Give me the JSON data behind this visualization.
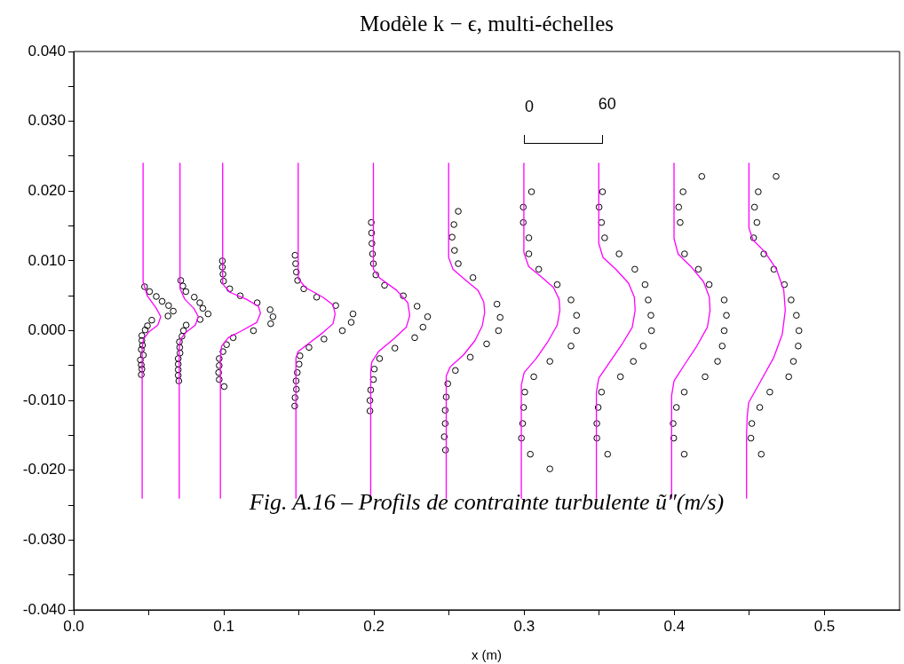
{
  "chart_data": {
    "type": "line",
    "title": "Modèle k − ϵ, multi-échelles",
    "xlabel": "x (m)",
    "xlim": [
      0,
      0.55
    ],
    "ylim": [
      -0.04,
      0.04
    ],
    "xticks": [
      {
        "value": 0,
        "label": "0.0"
      },
      {
        "value": 0.05,
        "label": null
      },
      {
        "value": 0.1,
        "label": "0.1"
      },
      {
        "value": 0.15,
        "label": null
      },
      {
        "value": 0.2,
        "label": "0.2"
      },
      {
        "value": 0.25,
        "label": null
      },
      {
        "value": 0.3,
        "label": "0.3"
      },
      {
        "value": 0.35,
        "label": null
      },
      {
        "value": 0.4,
        "label": "0.4"
      },
      {
        "value": 0.45,
        "label": null
      },
      {
        "value": 0.5,
        "label": "0.5"
      }
    ],
    "yticks": [
      {
        "value": -0.04,
        "label": "-0.040"
      },
      {
        "value": -0.035,
        "label": null
      },
      {
        "value": -0.03,
        "label": "-0.030"
      },
      {
        "value": -0.025,
        "label": null
      },
      {
        "value": -0.02,
        "label": "-0.020"
      },
      {
        "value": -0.015,
        "label": null
      },
      {
        "value": -0.01,
        "label": "-0.010"
      },
      {
        "value": -0.005,
        "label": null
      },
      {
        "value": 0,
        "label": "0.000"
      },
      {
        "value": 0.005,
        "label": null
      },
      {
        "value": 0.01,
        "label": "0.010"
      },
      {
        "value": 0.015,
        "label": null
      },
      {
        "value": 0.02,
        "label": "0.020"
      },
      {
        "value": 0.025,
        "label": null
      },
      {
        "value": 0.03,
        "label": "0.030"
      },
      {
        "value": 0.035,
        "label": null
      },
      {
        "value": 0.04,
        "label": "0.040"
      }
    ],
    "grid": false,
    "annotations": [
      "0",
      "60",
      "Fig. A.16 – Profils de contrainte turbulente ũ″(m/s)"
    ],
    "series": [
      {
        "type": "line",
        "color": "#ff00ff",
        "marker": "none",
        "line_style": "solid",
        "x": [
          0.0462,
          0.0462,
          0.049,
          0.055,
          0.058,
          0.056,
          0.05,
          0.0465,
          0.0456,
          0.0456
        ],
        "values": [
          0.024,
          0.007,
          0.005,
          0.0032,
          0.002,
          0.0008,
          -0.0002,
          -0.0012,
          -0.0025,
          -0.024
        ]
      },
      {
        "type": "line",
        "color": "#ff00ff",
        "marker": "none",
        "line_style": "solid",
        "x": [
          0.0708,
          0.0708,
          0.074,
          0.08,
          0.083,
          0.081,
          0.075,
          0.0712,
          0.0703,
          0.0703
        ],
        "values": [
          0.024,
          0.006,
          0.0045,
          0.0032,
          0.002,
          0.0008,
          -0.0002,
          -0.0012,
          -0.0025,
          -0.024
        ]
      },
      {
        "type": "line",
        "color": "#ff00ff",
        "marker": "none",
        "line_style": "solid",
        "x": [
          0.0992,
          0.0992,
          0.104,
          0.115,
          0.123,
          0.1244,
          0.122,
          0.112,
          0.103,
          0.0985,
          0.0977,
          0.0977
        ],
        "values": [
          0.024,
          0.0067,
          0.0055,
          0.0045,
          0.0035,
          0.0025,
          0.0012,
          0,
          -0.001,
          -0.0022,
          -0.004,
          -0.024
        ]
      },
      {
        "type": "line",
        "color": "#ff00ff",
        "marker": "none",
        "line_style": "solid",
        "x": [
          0.1495,
          0.1495,
          0.1542,
          0.1659,
          0.1727,
          0.1741,
          0.1727,
          0.1659,
          0.1566,
          0.1495,
          0.148,
          0.148
        ],
        "values": [
          0.024,
          0.0075,
          0.0062,
          0.0048,
          0.0037,
          0.0024,
          0.001,
          -0.0003,
          -0.0018,
          -0.003,
          -0.0039,
          -0.024
        ]
      },
      {
        "type": "line",
        "color": "#ff00ff",
        "marker": "none",
        "line_style": "solid",
        "x": [
          0.1996,
          0.1996,
          0.204,
          0.215,
          0.2225,
          0.2238,
          0.2215,
          0.213,
          0.203,
          0.1985,
          0.1978,
          0.1978
        ],
        "values": [
          0.024,
          0.0088,
          0.0075,
          0.0058,
          0.004,
          0.0022,
          0.0005,
          -0.0012,
          -0.003,
          -0.0045,
          -0.006,
          -0.024
        ]
      },
      {
        "type": "line",
        "color": "#ff00ff",
        "marker": "none",
        "line_style": "solid",
        "x": [
          0.2497,
          0.2497,
          0.2526,
          0.2595,
          0.2692,
          0.2731,
          0.2737,
          0.2721,
          0.2673,
          0.2595,
          0.2507,
          0.2481,
          0.2481
        ],
        "values": [
          0.024,
          0.0105,
          0.0088,
          0.0075,
          0.0058,
          0.0041,
          0.0026,
          0.0007,
          -0.0014,
          -0.0035,
          -0.0052,
          -0.0065,
          -0.024
        ]
      },
      {
        "type": "line",
        "color": "#ff00ff",
        "marker": "none",
        "line_style": "solid",
        "x": [
          0.2998,
          0.2998,
          0.303,
          0.311,
          0.3195,
          0.3233,
          0.3238,
          0.322,
          0.316,
          0.308,
          0.3,
          0.2981,
          0.2981
        ],
        "values": [
          0.024,
          0.0112,
          0.0092,
          0.0078,
          0.0062,
          0.0045,
          0.0029,
          0.0008,
          -0.0015,
          -0.004,
          -0.006,
          -0.0078,
          -0.024
        ]
      },
      {
        "type": "line",
        "color": "#ff00ff",
        "marker": "none",
        "line_style": "solid",
        "x": [
          0.3497,
          0.3497,
          0.3525,
          0.361,
          0.3695,
          0.3734,
          0.3739,
          0.372,
          0.365,
          0.357,
          0.3497,
          0.3481,
          0.3481
        ],
        "values": [
          0.024,
          0.0125,
          0.0105,
          0.0088,
          0.0068,
          0.0048,
          0.0029,
          0.0005,
          -0.002,
          -0.0045,
          -0.0068,
          -0.0088,
          -0.024
        ]
      },
      {
        "type": "line",
        "color": "#ff00ff",
        "marker": "none",
        "line_style": "solid",
        "x": [
          0.3998,
          0.3998,
          0.4025,
          0.411,
          0.4195,
          0.4233,
          0.4238,
          0.422,
          0.415,
          0.407,
          0.3998,
          0.3982,
          0.3982
        ],
        "values": [
          0.024,
          0.0132,
          0.011,
          0.0092,
          0.007,
          0.0048,
          0.0029,
          0.0005,
          -0.0022,
          -0.0048,
          -0.0072,
          -0.0093,
          -0.024
        ]
      },
      {
        "type": "line",
        "color": "#ff00ff",
        "marker": "none",
        "line_style": "solid",
        "x": [
          0.4497,
          0.4497,
          0.4524,
          0.4602,
          0.468,
          0.4729,
          0.4739,
          0.4719,
          0.4661,
          0.4563,
          0.4495,
          0.4485,
          0.4481,
          0.4481
        ],
        "values": [
          0.024,
          0.0147,
          0.013,
          0.0113,
          0.0088,
          0.0058,
          0.0029,
          -0.0005,
          -0.0039,
          -0.0077,
          -0.0103,
          -0.0124,
          -0.015,
          -0.024
        ]
      },
      {
        "type": "scatter",
        "color": "#000000",
        "marker": "circle",
        "x": [
          0.0472,
          0.0505,
          0.055,
          0.0589,
          0.0632,
          0.0663,
          0.0628,
          0.052,
          0.0491,
          0.0476,
          0.0454,
          0.0454,
          0.0458,
          0.045,
          0.0464,
          0.0444,
          0.045,
          0.0454,
          0.045
        ],
        "values": [
          0.0063,
          0.0056,
          0.0049,
          0.0042,
          0.0036,
          0.0028,
          0.0021,
          0.0015,
          0.0007,
          0.0001,
          -0.0007,
          -0.0014,
          -0.0021,
          -0.0027,
          -0.0035,
          -0.0042,
          -0.0049,
          -0.0055,
          -0.0063
        ]
      },
      {
        "type": "scatter",
        "color": "#000000",
        "marker": "circle",
        "x": [
          0.0713,
          0.0727,
          0.0747,
          0.0803,
          0.084,
          0.086,
          0.0895,
          0.0842,
          0.0749,
          0.0731,
          0.0721,
          0.0704,
          0.0706,
          0.0708,
          0.0696,
          0.0696,
          0.0696,
          0.0696,
          0.07
        ],
        "values": [
          0.0072,
          0.0064,
          0.0056,
          0.0048,
          0.004,
          0.0032,
          0.0024,
          0.0016,
          0.0008,
          0,
          -0.0008,
          -0.0016,
          -0.0024,
          -0.0032,
          -0.004,
          -0.0048,
          -0.0056,
          -0.0064,
          -0.0072
        ]
      },
      {
        "type": "scatter",
        "color": "#000000",
        "marker": "circle",
        "x": [
          0.099,
          0.099,
          0.0994,
          0.0998,
          0.1039,
          0.1109,
          0.1222,
          0.1308,
          0.1327,
          0.1312,
          0.1197,
          0.1062,
          0.1018,
          0.0994,
          0.0969,
          0.0969,
          0.0965,
          0.0969,
          0.1002
        ],
        "values": [
          0.01,
          0.0091,
          0.0081,
          0.0071,
          0.006,
          0.005,
          0.004,
          0.003,
          0.002,
          0.001,
          0,
          -0.001,
          -0.002,
          -0.003,
          -0.004,
          -0.005,
          -0.006,
          -0.007,
          -0.008
        ]
      },
      {
        "type": "scatter",
        "color": "#000000",
        "marker": "circle",
        "x": [
          0.1474,
          0.1478,
          0.1483,
          0.1491,
          0.1532,
          0.1618,
          0.1745,
          0.186,
          0.1848,
          0.1789,
          0.1667,
          0.1567,
          0.1507,
          0.1501,
          0.1489,
          0.1481,
          0.1483,
          0.1474,
          0.1472
        ],
        "values": [
          0.0108,
          0.0096,
          0.0084,
          0.0072,
          0.006,
          0.0048,
          0.0036,
          0.0024,
          0.0012,
          0,
          -0.0012,
          -0.0024,
          -0.0036,
          -0.0048,
          -0.006,
          -0.0072,
          -0.0084,
          -0.0096,
          -0.0108
        ]
      },
      {
        "type": "scatter",
        "color": "#000000",
        "marker": "circle",
        "x": [
          0.1982,
          0.1984,
          0.1986,
          0.199,
          0.1996,
          0.2012,
          0.207,
          0.2195,
          0.2287,
          0.2357,
          0.2326,
          0.2271,
          0.2139,
          0.2037,
          0.2002,
          0.1996,
          0.1978,
          0.1973,
          0.1973
        ],
        "values": [
          0.0155,
          0.014,
          0.0125,
          0.011,
          0.0096,
          0.008,
          0.0065,
          0.005,
          0.0035,
          0.002,
          0.0005,
          -0.001,
          -0.0025,
          -0.004,
          -0.0055,
          -0.007,
          -0.0085,
          -0.01,
          -0.0115
        ]
      },
      {
        "type": "scatter",
        "color": "#000000",
        "marker": "circle",
        "x": [
          0.2561,
          0.2532,
          0.252,
          0.2536,
          0.2561,
          0.2659,
          0.2819,
          0.284,
          0.2829,
          0.275,
          0.2641,
          0.2542,
          0.2491,
          0.2481,
          0.2474,
          0.2474,
          0.2468,
          0.2476
        ],
        "values": [
          0.0171,
          0.0152,
          0.0134,
          0.0115,
          0.0096,
          0.0076,
          0.0038,
          0.0019,
          0,
          -0.0019,
          -0.0038,
          -0.0057,
          -0.0076,
          -0.0095,
          -0.0114,
          -0.0133,
          -0.0152,
          -0.0171
        ]
      },
      {
        "type": "scatter",
        "color": "#000000",
        "marker": "circle",
        "x": [
          0.3049,
          0.2994,
          0.2994,
          0.3031,
          0.3031,
          0.3097,
          0.322,
          0.3312,
          0.3349,
          0.3349,
          0.3312,
          0.3171,
          0.3064,
          0.3004,
          0.2996,
          0.299,
          0.2982,
          0.3041,
          0.3171
        ],
        "values": [
          0.0199,
          0.0177,
          0.0155,
          0.0133,
          0.011,
          0.0088,
          0.0066,
          0.0044,
          0.0022,
          0,
          -0.0022,
          -0.0044,
          -0.0066,
          -0.0088,
          -0.011,
          -0.0133,
          -0.0154,
          -0.0177,
          -0.0198
        ]
      },
      {
        "type": "scatter",
        "color": "#000000",
        "marker": "circle",
        "x": [
          0.3522,
          0.3499,
          0.3515,
          0.3536,
          0.3632,
          0.3737,
          0.3805,
          0.3826,
          0.3844,
          0.3848,
          0.3793,
          0.3727,
          0.3641,
          0.3515,
          0.3493,
          0.3484,
          0.3484,
          0.3556
        ],
        "values": [
          0.0199,
          0.0177,
          0.0155,
          0.0133,
          0.011,
          0.0088,
          0.0066,
          0.0044,
          0.0022,
          0,
          -0.0022,
          -0.0044,
          -0.0066,
          -0.0088,
          -0.011,
          -0.0133,
          -0.0154,
          -0.0177
        ]
      },
      {
        "type": "scatter",
        "color": "#000000",
        "marker": "circle",
        "x": [
          0.4183,
          0.4058,
          0.4029,
          0.4039,
          0.4068,
          0.416,
          0.4232,
          0.4332,
          0.4347,
          0.4332,
          0.4319,
          0.4288,
          0.4205,
          0.4066,
          0.4014,
          0.3992,
          0.3996,
          0.4066
        ],
        "values": [
          0.0221,
          0.0199,
          0.0177,
          0.0155,
          0.011,
          0.0088,
          0.0066,
          0.0044,
          0.0022,
          0,
          -0.0022,
          -0.0044,
          -0.0066,
          -0.0088,
          -0.011,
          -0.0133,
          -0.0154,
          -0.0177
        ]
      },
      {
        "type": "scatter",
        "color": "#000000",
        "marker": "circle",
        "x": [
          0.4678,
          0.4559,
          0.4534,
          0.455,
          0.4528,
          0.4596,
          0.4663,
          0.4733,
          0.4778,
          0.4813,
          0.483,
          0.4825,
          0.4793,
          0.4762,
          0.4636,
          0.4569,
          0.4516,
          0.451,
          0.4579
        ],
        "values": [
          0.0221,
          0.0199,
          0.0177,
          0.0155,
          0.0133,
          0.011,
          0.0088,
          0.0066,
          0.0044,
          0.0022,
          0,
          -0.0022,
          -0.0044,
          -0.0066,
          -0.0088,
          -0.011,
          -0.0133,
          -0.0154,
          -0.0177
        ]
      }
    ]
  }
}
